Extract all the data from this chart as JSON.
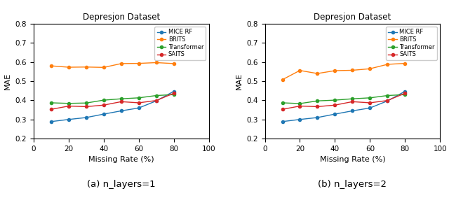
{
  "title": "Depresjon Dataset",
  "xlabel": "Missing Rate (%)",
  "ylabel": "MAE",
  "x": [
    10,
    20,
    30,
    40,
    50,
    60,
    70,
    80
  ],
  "panel1": {
    "subtitle": "(a) n_layers=1",
    "MICE_RF": [
      0.289,
      0.3,
      0.31,
      0.328,
      0.345,
      0.36,
      0.397,
      0.447
    ],
    "BRITS": [
      0.58,
      0.573,
      0.574,
      0.572,
      0.592,
      0.593,
      0.597,
      0.592
    ],
    "Transformer": [
      0.387,
      0.384,
      0.386,
      0.401,
      0.408,
      0.413,
      0.425,
      0.43
    ],
    "SAITS": [
      0.353,
      0.37,
      0.367,
      0.375,
      0.393,
      0.387,
      0.399,
      0.437
    ]
  },
  "panel2": {
    "subtitle": "(b) n_layers=2",
    "MICE_RF": [
      0.289,
      0.3,
      0.31,
      0.328,
      0.345,
      0.36,
      0.397,
      0.447
    ],
    "BRITS": [
      0.508,
      0.556,
      0.54,
      0.555,
      0.557,
      0.565,
      0.588,
      0.593
    ],
    "Transformer": [
      0.387,
      0.383,
      0.397,
      0.401,
      0.408,
      0.413,
      0.425,
      0.43
    ],
    "SAITS": [
      0.353,
      0.37,
      0.367,
      0.375,
      0.393,
      0.387,
      0.399,
      0.437
    ]
  },
  "colors": {
    "MICE_RF": "#1f77b4",
    "BRITS": "#ff7f0e",
    "Transformer": "#2ca02c",
    "SAITS": "#d62728"
  },
  "ylim": [
    0.2,
    0.8
  ],
  "xlim": [
    0,
    100
  ],
  "yticks": [
    0.2,
    0.3,
    0.4,
    0.5,
    0.6,
    0.7,
    0.8
  ],
  "xticks": [
    0,
    20,
    40,
    60,
    80,
    100
  ],
  "series_names": [
    "MICE_RF",
    "BRITS",
    "Transformer",
    "SAITS"
  ],
  "legend_labels": [
    "MICE RF",
    "BRITS",
    "Transformer",
    "SAITS"
  ]
}
